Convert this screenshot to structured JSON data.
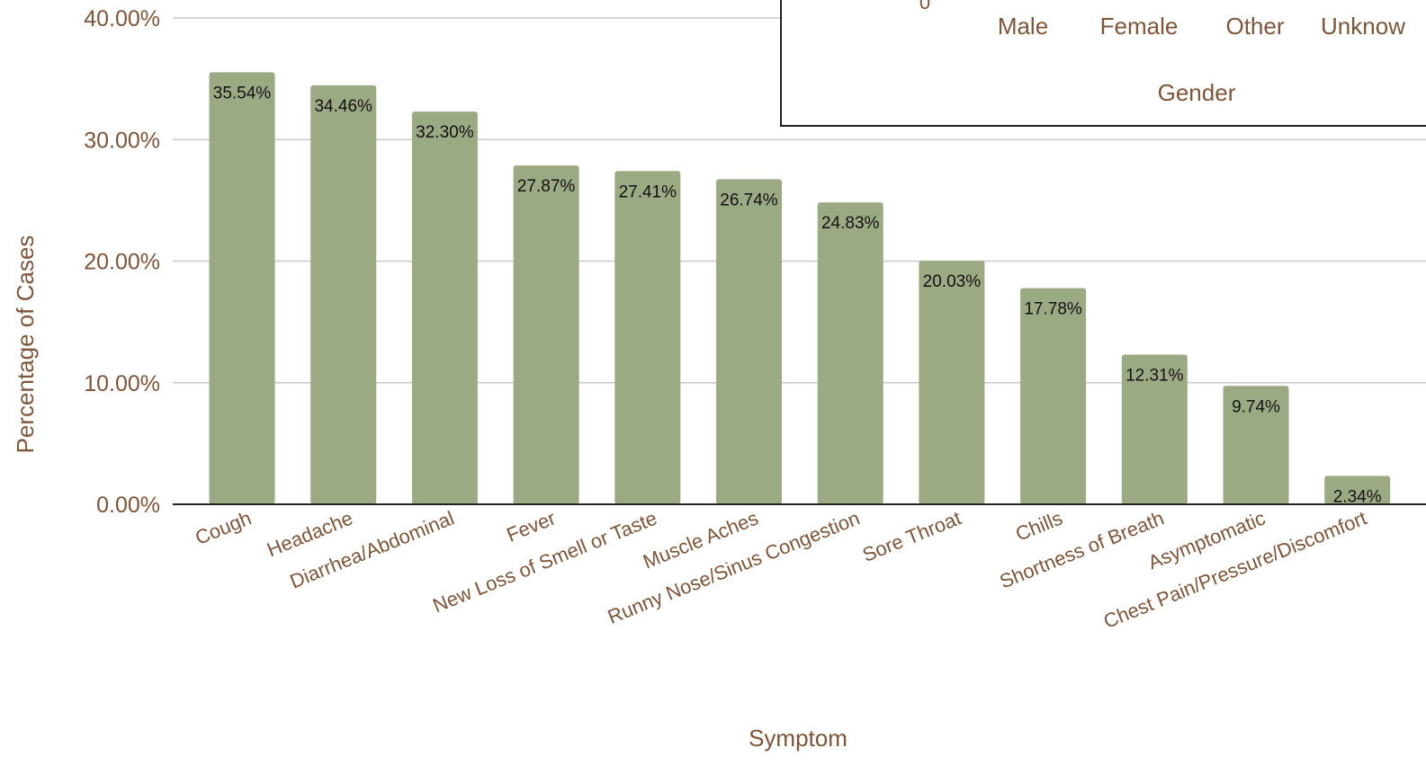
{
  "chart_data": [
    {
      "type": "bar",
      "title": "",
      "xlabel": "Symptom",
      "ylabel": "Percentage of Cases",
      "ylim": [
        0,
        40
      ],
      "yticks": [
        "0.00%",
        "10.00%",
        "20.00%",
        "30.00%",
        "40.00%"
      ],
      "grid": true,
      "legend": "none",
      "bar_color": "#9caa84",
      "categories": [
        "Cough",
        "Headache",
        "Diarrhea/Abdominal",
        "Fever",
        "New Loss of Smell or Taste",
        "Muscle Aches",
        "Runny Nose/Sinus Congestion",
        "Sore Throat",
        "Chills",
        "Shortness of Breath",
        "Asymptomatic",
        "Chest Pain/Pressure/Discomfort"
      ],
      "values": [
        35.54,
        34.46,
        32.3,
        27.87,
        27.41,
        26.74,
        24.83,
        20.03,
        17.78,
        12.31,
        9.74,
        2.34
      ],
      "data_labels": [
        "35.54%",
        "34.46%",
        "32.30%",
        "27.87%",
        "27.41%",
        "26.74%",
        "24.83%",
        "20.03%",
        "17.78%",
        "12.31%",
        "9.74%",
        "2.34%"
      ]
    },
    {
      "type": "bar",
      "title": "",
      "xlabel": "Gender",
      "ylabel": "",
      "visible_tick": "0",
      "categories": [
        "Male",
        "Female",
        "Other",
        "Unknow"
      ]
    }
  ]
}
